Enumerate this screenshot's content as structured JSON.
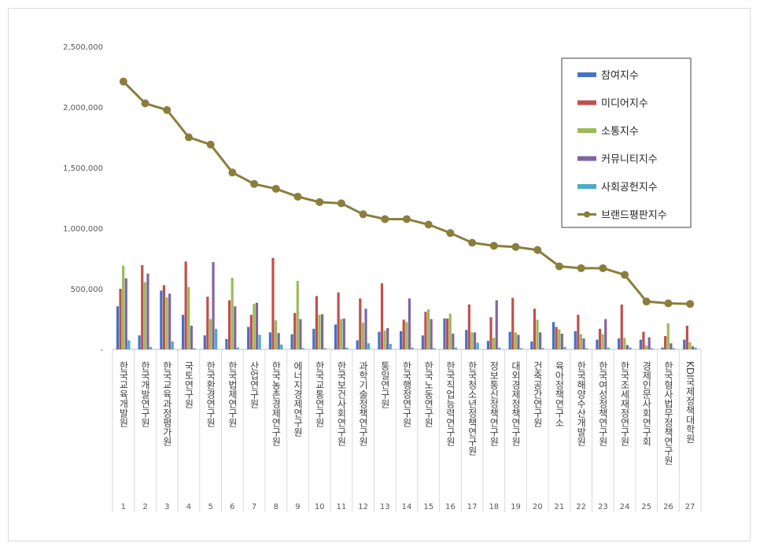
{
  "chart_data": {
    "type": "bar",
    "categories": [
      "1",
      "2",
      "3",
      "4",
      "5",
      "6",
      "7",
      "8",
      "9",
      "10",
      "11",
      "12",
      "13",
      "14",
      "15",
      "16",
      "17",
      "18",
      "19",
      "20",
      "21",
      "22",
      "23",
      "24",
      "25",
      "26",
      "27"
    ],
    "institutes": [
      "한국교육개발원",
      "한국개발연구원",
      "한국교육과정평가원",
      "국토연구원",
      "한국환경연구원",
      "한국법제연구원",
      "산업연구원",
      "한국농촌경제연구원",
      "에너지경제연구원",
      "한국교통연구원",
      "한국보건사회연구원",
      "과학기술정책연구원",
      "통일연구원",
      "한국행정연구원",
      "한국노동연구원",
      "한국직업능력연구원",
      "한국청소년정책연구원",
      "정보통신정책연구원",
      "대외경제정책연구원",
      "건축공간연구원",
      "육아정책연구소",
      "한국해양수산개발원",
      "한국여성정책연구원",
      "한국조세재정연구원",
      "경제인문사회연구회",
      "한국형사법무정책연구원",
      "KDI국제정책대학원"
    ],
    "series": [
      {
        "name": "참여지수",
        "color": "#4472c4",
        "values": [
          355000,
          115000,
          485000,
          285000,
          115000,
          85000,
          185000,
          140000,
          125000,
          170000,
          205000,
          75000,
          145000,
          150000,
          115000,
          255000,
          160000,
          70000,
          145000,
          65000,
          225000,
          150000,
          80000,
          90000,
          80000,
          15000,
          80000
        ]
      },
      {
        "name": "미디어지수",
        "color": "#c0504d",
        "values": [
          500000,
          695000,
          530000,
          725000,
          435000,
          405000,
          285000,
          755000,
          300000,
          440000,
          470000,
          420000,
          545000,
          245000,
          310000,
          255000,
          370000,
          265000,
          425000,
          335000,
          185000,
          285000,
          170000,
          370000,
          145000,
          110000,
          195000
        ]
      },
      {
        "name": "소통지수",
        "color": "#9bbb59",
        "values": [
          690000,
          555000,
          430000,
          515000,
          250000,
          590000,
          375000,
          240000,
          565000,
          285000,
          250000,
          220000,
          155000,
          225000,
          330000,
          295000,
          140000,
          95000,
          140000,
          245000,
          165000,
          125000,
          125000,
          95000,
          30000,
          215000,
          60000
        ]
      },
      {
        "name": "커뮤니티지수",
        "color": "#8064a2",
        "values": [
          585000,
          625000,
          460000,
          195000,
          720000,
          355000,
          385000,
          135000,
          250000,
          290000,
          255000,
          335000,
          175000,
          420000,
          250000,
          130000,
          140000,
          405000,
          120000,
          140000,
          130000,
          90000,
          250000,
          35000,
          100000,
          50000,
          25000
        ]
      },
      {
        "name": "사회공헌지수",
        "color": "#4bacc6",
        "values": [
          75000,
          20000,
          65000,
          10000,
          170000,
          15000,
          120000,
          40000,
          10000,
          10000,
          15000,
          50000,
          45000,
          15000,
          10000,
          15000,
          55000,
          15000,
          10000,
          10000,
          20000,
          10000,
          15000,
          15000,
          10000,
          10000,
          15000
        ]
      },
      {
        "name": "브랜드평판지수",
        "color": "#8a7e3c",
        "values": [
          2210000,
          2030000,
          1975000,
          1750000,
          1690000,
          1460000,
          1365000,
          1325000,
          1260000,
          1215000,
          1205000,
          1115000,
          1075000,
          1075000,
          1030000,
          960000,
          880000,
          855000,
          845000,
          820000,
          685000,
          670000,
          670000,
          615000,
          395000,
          380000,
          375000
        ]
      }
    ],
    "y_tick_labels": [
      "-",
      "500,000",
      "1,000,000",
      "1,500,000",
      "2,000,000",
      "2,500,000"
    ],
    "ylim": [
      0,
      2500000
    ],
    "grid": false,
    "legend_position": "top-right"
  }
}
